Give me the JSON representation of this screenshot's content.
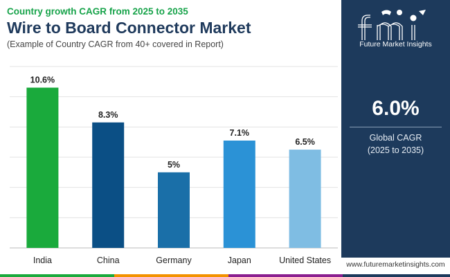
{
  "header": {
    "subtitle": "Country growth CAGR from 2025 to 2035",
    "title": "Wire to Board Connector Market",
    "caption": "(Example of Country CAGR from 40+ covered in Report)"
  },
  "chart_data": {
    "type": "bar",
    "categories": [
      "India",
      "China",
      "Germany",
      "Japan",
      "United States"
    ],
    "values": [
      10.6,
      8.3,
      5,
      7.1,
      6.5
    ],
    "value_labels": [
      "10.6%",
      "8.3%",
      "5%",
      "7.1%",
      "6.5%"
    ],
    "bar_colors": [
      "#1aaa3c",
      "#0b4f85",
      "#1a6fa8",
      "#2b92d6",
      "#7fbde3"
    ],
    "ylim": [
      0,
      12
    ],
    "grid": true,
    "title": "",
    "xlabel": "",
    "ylabel": ""
  },
  "side_panel": {
    "logo_text": "Future Market Insights",
    "cagr_value": "6.0%",
    "cagr_label_line1": "Global CAGR",
    "cagr_label_line2": "(2025 to 2035)",
    "background": "#1d3a5c"
  },
  "footer": {
    "website": "www.futuremarketinsights.com",
    "strip_colors": [
      "#1aaa3c",
      "#f39200",
      "#8b1e8f",
      "#1d3a5c"
    ]
  }
}
